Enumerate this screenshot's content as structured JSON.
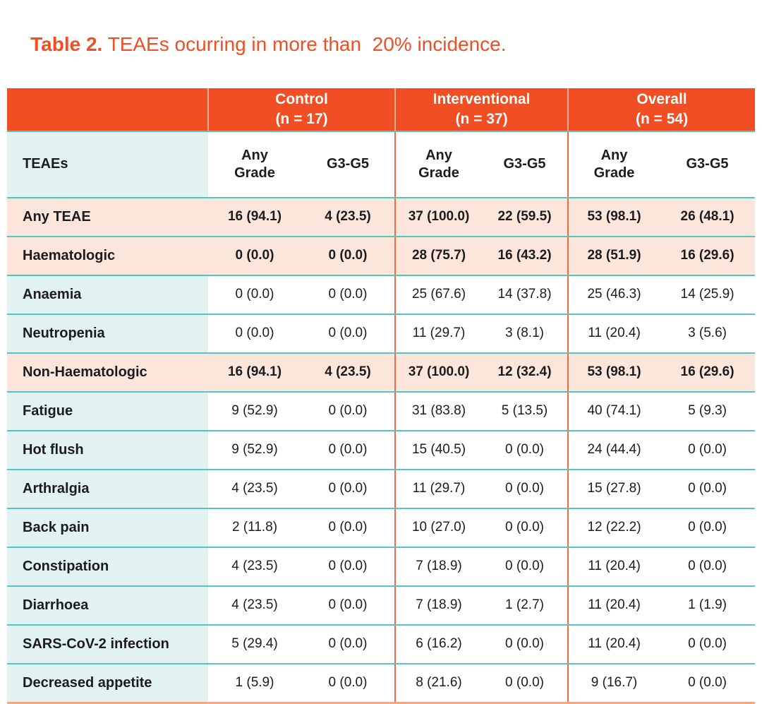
{
  "title": {
    "prefix": "Table 2.",
    "rest": " TEAEs ocurring in more than  20% incidence."
  },
  "colors": {
    "accent_orange": "#F14E23",
    "vertical_divider_orange": "#F26843",
    "bottom_border_salmon": "#F6A67E",
    "row_divider_teal": "#55C4C3",
    "label_cell_teal": "#E1F2F1",
    "highlight_row_peach": "#FCE5DB",
    "text": "#1C1C1E"
  },
  "table": {
    "corner_label": "TEAEs",
    "groups": [
      {
        "label": "Control",
        "n": "(n = 17)"
      },
      {
        "label": "Interventional",
        "n": "(n = 37)"
      },
      {
        "label": "Overall",
        "n": "(n = 54)"
      }
    ],
    "subheaders": {
      "any_grade": "Any Grade",
      "g3g5": "G3-G5"
    },
    "rows": [
      {
        "label": "Any TEAE",
        "highlight": true,
        "values": [
          "16 (94.1)",
          "4 (23.5)",
          "37 (100.0)",
          "22 (59.5)",
          "53 (98.1)",
          "26 (48.1)"
        ]
      },
      {
        "label": "Haematologic",
        "highlight": true,
        "values": [
          "0 (0.0)",
          "0 (0.0)",
          "28 (75.7)",
          "16 (43.2)",
          "28 (51.9)",
          "16 (29.6)"
        ]
      },
      {
        "label": "Anaemia",
        "highlight": false,
        "values": [
          "0 (0.0)",
          "0 (0.0)",
          "25 (67.6)",
          "14 (37.8)",
          "25 (46.3)",
          "14 (25.9)"
        ]
      },
      {
        "label": "Neutropenia",
        "highlight": false,
        "values": [
          "0 (0.0)",
          "0 (0.0)",
          "11 (29.7)",
          "3 (8.1)",
          "11 (20.4)",
          "3 (5.6)"
        ]
      },
      {
        "label": "Non-Haematologic",
        "highlight": true,
        "values": [
          "16 (94.1)",
          "4 (23.5)",
          "37 (100.0)",
          "12 (32.4)",
          "53 (98.1)",
          "16 (29.6)"
        ]
      },
      {
        "label": "Fatigue",
        "highlight": false,
        "values": [
          "9 (52.9)",
          "0 (0.0)",
          "31 (83.8)",
          "5 (13.5)",
          "40 (74.1)",
          "5 (9.3)"
        ]
      },
      {
        "label": "Hot flush",
        "highlight": false,
        "values": [
          "9 (52.9)",
          "0 (0.0)",
          "15 (40.5)",
          "0 (0.0)",
          "24 (44.4)",
          "0 (0.0)"
        ]
      },
      {
        "label": "Arthralgia",
        "highlight": false,
        "values": [
          "4 (23.5)",
          "0 (0.0)",
          "11 (29.7)",
          "0 (0.0)",
          "15 (27.8)",
          "0 (0.0)"
        ]
      },
      {
        "label": "Back pain",
        "highlight": false,
        "values": [
          "2 (11.8)",
          "0 (0.0)",
          "10 (27.0)",
          "0 (0.0)",
          "12 (22.2)",
          "0 (0.0)"
        ]
      },
      {
        "label": "Constipation",
        "highlight": false,
        "values": [
          "4 (23.5)",
          "0 (0.0)",
          "7 (18.9)",
          "0 (0.0)",
          "11 (20.4)",
          "0 (0.0)"
        ]
      },
      {
        "label": "Diarrhoea",
        "highlight": false,
        "values": [
          "4 (23.5)",
          "0 (0.0)",
          "7 (18.9)",
          "1 (2.7)",
          "11 (20.4)",
          "1 (1.9)"
        ]
      },
      {
        "label": "SARS-CoV-2 infection",
        "highlight": false,
        "values": [
          "5 (29.4)",
          "0 (0.0)",
          "6 (16.2)",
          "0 (0.0)",
          "11 (20.4)",
          "0 (0.0)"
        ]
      },
      {
        "label": "Decreased appetite",
        "highlight": false,
        "values": [
          "1 (5.9)",
          "0 (0.0)",
          "8 (21.6)",
          "0 (0.0)",
          "9 (16.7)",
          "0 (0.0)"
        ]
      }
    ]
  }
}
